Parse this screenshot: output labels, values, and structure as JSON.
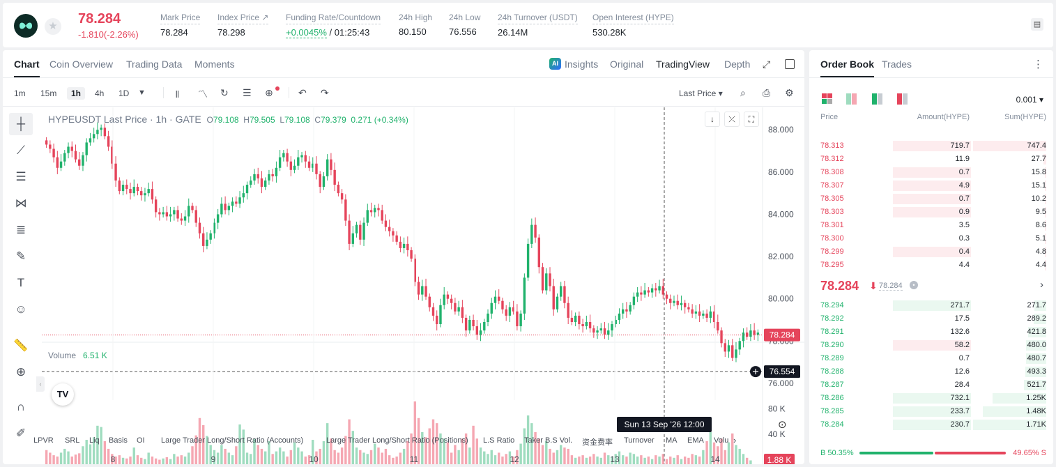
{
  "header": {
    "last_price": "78.284",
    "price_change": "-1.810(-2.26%)",
    "stats": [
      {
        "label": "Mark Price",
        "value": "78.284"
      },
      {
        "label": "Index Price ↗",
        "value": "78.298"
      },
      {
        "label": "Funding Rate/Countdown",
        "value_green": "+0.0045%",
        "value": " / 01:25:43"
      },
      {
        "label": "24h High",
        "value": "80.150"
      },
      {
        "label": "24h Low",
        "value": "76.556"
      },
      {
        "label": "24h Turnover (USDT)",
        "value": "26.14M"
      },
      {
        "label": "Open Interest (HYPE)",
        "value": "530.28K"
      }
    ]
  },
  "chart_tabs": [
    "Chart",
    "Coin Overview",
    "Trading Data",
    "Moments"
  ],
  "view_tabs": {
    "insights": "Insights",
    "original": "Original",
    "tradingview": "TradingView",
    "depth": "Depth",
    "ai_badge": "AI"
  },
  "intervals": [
    "1m",
    "15m",
    "1h",
    "4h",
    "1D"
  ],
  "toolbar": {
    "price_type": "Last Price ▾"
  },
  "legend": {
    "title": "HYPEUSDT Last Price · 1h · GATE",
    "o_label": "O",
    "o": "79.108",
    "h_label": "H",
    "h": "79.505",
    "l_label": "L",
    "l": "79.108",
    "c_label": "C",
    "c": "79.379",
    "change": "0.271 (+0.34%)"
  },
  "volume_legend": {
    "label": "Volume",
    "value": "6.51 K"
  },
  "price_labels": {
    "current": "78.284",
    "low": "76.554",
    "volume": "1.88 K"
  },
  "crosshair_label": "Sun 13 Sep '26    12:00",
  "indicators": [
    "LPVR",
    "SRL",
    "Liq",
    "Basis",
    "OI",
    "Large Trader Long/Short Ratio (Accounts)",
    "Large Trader Long/Short Ratio (Positions)",
    "L.S Ratio",
    "Taker B.S Vol.",
    "资金费率",
    "Turnover",
    "MA",
    "EMA",
    "Volu"
  ],
  "chart_data": {
    "type": "candlestick",
    "symbol": "HYPEUSDT",
    "interval": "1h",
    "y_ticks": [
      "88.000",
      "86.000",
      "84.000",
      "82.000",
      "80.000",
      "78.000",
      "76.000"
    ],
    "y_range": [
      75.6,
      88.8
    ],
    "volume_ticks": [
      "80 K",
      "40 K"
    ],
    "x_ticks": [
      "8",
      "9",
      "10",
      "11",
      "12",
      "13",
      "14"
    ],
    "close_path": [
      87.3,
      87.1,
      86.7,
      86.2,
      86.5,
      86.9,
      87.2,
      87.0,
      86.6,
      86.3,
      86.8,
      87.4,
      87.6,
      87.8,
      88.0,
      88.1,
      87.7,
      87.2,
      86.4,
      85.6,
      85.1,
      85.4,
      85.2,
      85.0,
      85.3,
      85.1,
      84.9,
      85.0,
      85.2,
      84.7,
      84.1,
      84.0,
      84.1,
      83.9,
      84.0,
      84.2,
      83.8,
      83.7,
      83.9,
      84.4,
      84.2,
      83.6,
      83.1,
      82.5,
      82.8,
      83.1,
      83.6,
      84.0,
      84.5,
      84.2,
      84.4,
      84.6,
      84.5,
      84.8,
      85.0,
      85.4,
      85.6,
      85.9,
      85.7,
      85.3,
      85.6,
      85.9,
      85.8,
      86.2,
      86.7,
      86.9,
      86.5,
      86.1,
      86.3,
      86.7,
      86.8,
      86.5,
      86.2,
      86.4,
      85.9,
      85.3,
      85.8,
      86.6,
      86.1,
      85.4,
      85.0,
      84.7,
      83.7,
      82.6,
      83.1,
      83.5,
      82.8,
      83.6,
      84.2,
      84.1,
      84.3,
      84.2,
      83.7,
      83.4,
      83.2,
      83.0,
      82.7,
      82.4,
      82.6,
      82.3,
      81.9,
      80.8,
      80.2,
      80.6,
      80.1,
      79.6,
      79.2,
      78.8,
      79.7,
      80.2,
      80.0,
      79.8,
      79.4,
      79.6,
      79.1,
      78.5,
      79.0,
      78.7,
      78.3,
      78.5,
      78.9,
      79.3,
      79.8,
      80.1,
      79.9,
      79.5,
      79.2,
      79.6,
      79.4,
      78.7,
      79.3,
      81.0,
      82.6,
      83.5,
      82.9,
      81.5,
      80.4,
      81.2,
      80.6,
      79.5,
      80.1,
      80.6,
      79.8,
      79.1,
      78.9,
      79.2,
      78.8,
      78.7,
      78.9,
      78.6,
      78.4,
      78.5,
      78.6,
      78.3,
      78.5,
      78.8,
      79.0,
      79.3,
      79.5,
      79.4,
      79.7,
      80.1,
      80.3,
      80.2,
      80.4,
      80.3,
      80.5,
      80.4,
      80.6,
      80.2,
      80.0,
      79.8,
      79.9,
      79.7,
      79.8,
      79.6,
      79.5,
      79.3,
      79.4,
      79.2,
      79.3,
      79.1,
      79.4,
      78.9,
      78.5,
      77.9,
      77.5,
      77.8,
      77.2,
      77.6,
      78.0,
      78.4,
      78.2,
      78.5,
      78.3,
      78.4
    ],
    "volume_path": [
      22,
      18,
      14,
      12,
      18,
      24,
      20,
      12,
      15,
      17,
      28,
      38,
      31,
      42,
      60,
      58,
      36,
      24,
      16,
      12,
      14,
      10,
      9,
      12,
      26,
      14,
      10,
      8,
      18,
      12,
      9,
      7,
      9,
      11,
      8,
      16,
      12,
      14,
      12,
      18,
      28,
      45,
      72,
      61,
      44,
      30,
      22,
      18,
      30,
      24,
      18,
      14,
      28,
      62,
      54,
      18,
      16,
      40,
      30,
      24,
      20,
      36,
      16,
      20,
      26,
      20,
      12,
      22,
      34,
      26,
      20,
      12,
      14,
      38,
      20,
      24,
      36,
      64,
      40,
      22,
      18,
      26,
      44,
      70,
      52,
      26,
      22,
      18,
      16,
      22,
      32,
      26,
      18,
      24,
      14,
      10,
      12,
      18,
      24,
      36,
      48,
      98,
      72,
      50,
      42,
      56,
      70,
      64,
      48,
      40,
      34,
      18,
      30,
      22,
      40,
      48,
      26,
      60,
      40,
      26,
      20,
      16,
      22,
      14,
      18,
      12,
      16,
      20,
      12,
      22,
      32,
      56,
      76,
      64,
      50,
      40,
      30,
      36,
      24,
      18,
      22,
      30,
      26,
      24,
      14,
      10,
      12,
      14,
      10,
      12,
      16,
      12,
      10,
      18,
      14,
      12,
      16,
      20,
      14,
      12,
      18,
      16,
      12,
      14,
      10,
      12,
      8,
      14,
      12,
      16,
      8,
      12,
      10,
      14,
      8,
      12,
      10,
      16,
      14,
      12,
      22,
      36,
      50,
      34,
      28,
      40,
      22,
      34,
      48,
      30,
      24,
      16,
      10,
      6
    ]
  },
  "order_book": {
    "tabs": [
      "Order Book",
      "Trades"
    ],
    "precision": "0.001 ▾",
    "headers": {
      "price": "Price",
      "amount": "Amount(HYPE)",
      "sum": "Sum(HYPE)"
    },
    "asks": [
      {
        "price": "78.313",
        "amount": "719.7",
        "sum": "747.4",
        "depth": 1.0
      },
      {
        "price": "78.312",
        "amount": "11.9",
        "sum": "27.7",
        "depth": 0.037
      },
      {
        "price": "78.308",
        "amount": "0.7",
        "sum": "15.8",
        "depth": 0.021
      },
      {
        "price": "78.307",
        "amount": "4.9",
        "sum": "15.1",
        "depth": 0.02
      },
      {
        "price": "78.305",
        "amount": "0.7",
        "sum": "10.2",
        "depth": 0.014
      },
      {
        "price": "78.303",
        "amount": "0.9",
        "sum": "9.5",
        "depth": 0.013
      },
      {
        "price": "78.301",
        "amount": "3.5",
        "sum": "8.6",
        "depth": 0.012
      },
      {
        "price": "78.300",
        "amount": "0.3",
        "sum": "5.1",
        "depth": 0.007
      },
      {
        "price": "78.299",
        "amount": "0.4",
        "sum": "4.8",
        "depth": 0.006
      },
      {
        "price": "78.295",
        "amount": "4.4",
        "sum": "4.4",
        "depth": 0.006
      }
    ],
    "ask_amount_shaded": [
      true,
      false,
      true,
      true,
      true,
      true,
      false,
      false,
      true,
      false
    ],
    "mid": {
      "price": "78.284",
      "arrow": "⬇",
      "mark": "78.284"
    },
    "bids": [
      {
        "price": "78.294",
        "amount": "271.7",
        "sum": "271.7",
        "depth": 0.159
      },
      {
        "price": "78.292",
        "amount": "17.5",
        "sum": "289.2",
        "depth": 0.169
      },
      {
        "price": "78.291",
        "amount": "132.6",
        "sum": "421.8",
        "depth": 0.247
      },
      {
        "price": "78.290",
        "amount": "58.2",
        "sum": "480.0",
        "depth": 0.281
      },
      {
        "price": "78.289",
        "amount": "0.7",
        "sum": "480.7",
        "depth": 0.281
      },
      {
        "price": "78.288",
        "amount": "12.6",
        "sum": "493.3",
        "depth": 0.288
      },
      {
        "price": "78.287",
        "amount": "28.4",
        "sum": "521.7",
        "depth": 0.305
      },
      {
        "price": "78.286",
        "amount": "732.1",
        "sum": "1.25K",
        "depth": 0.731
      },
      {
        "price": "78.285",
        "amount": "233.7",
        "sum": "1.48K",
        "depth": 0.866
      },
      {
        "price": "78.284",
        "amount": "230.7",
        "sum": "1.71K",
        "depth": 1.0
      }
    ],
    "bid_amount_shaded": [
      "g",
      "n",
      "n",
      "r",
      "n",
      "n",
      "n",
      "g",
      "g",
      "g"
    ],
    "ratio": {
      "buy_label": "B 50.35%",
      "sell_label": "49.65% S",
      "buy_fraction": 0.5035
    }
  },
  "colors": {
    "up": "#20b26c",
    "down": "#e5445b",
    "up_light": "#eaf8f0",
    "down_light": "#fdecee"
  }
}
